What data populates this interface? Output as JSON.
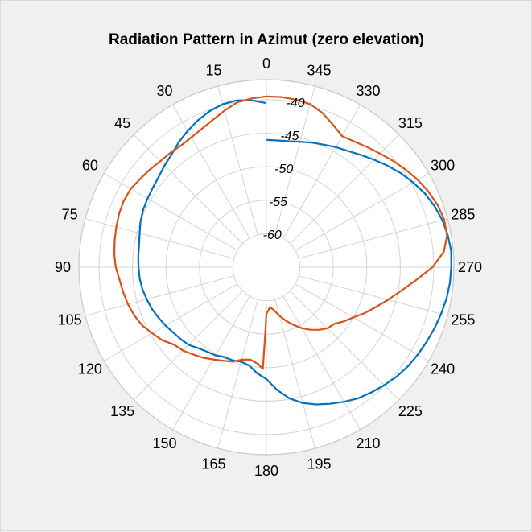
{
  "chart_data": {
    "type": "polar-line",
    "title": "Radiation Pattern in Azimut (zero elevation)",
    "theta_zero_location": "top",
    "theta_direction": "counterclockwise",
    "theta_tick_labels": [
      "0",
      "15",
      "30",
      "45",
      "60",
      "75",
      "90",
      "105",
      "120",
      "135",
      "150",
      "165",
      "180",
      "195",
      "210",
      "225",
      "240",
      "255",
      "270",
      "285",
      "300",
      "315",
      "330",
      "345"
    ],
    "theta_ticks": [
      0,
      15,
      30,
      45,
      60,
      75,
      90,
      105,
      120,
      135,
      150,
      165,
      180,
      195,
      210,
      225,
      240,
      255,
      270,
      285,
      300,
      315,
      330,
      345
    ],
    "r_ticks": [
      -60,
      -55,
      -50,
      -45,
      -40
    ],
    "r_tick_labels": [
      "-60",
      "-55",
      "-50",
      "-45",
      "-40"
    ],
    "rlim": [
      -65,
      -37
    ],
    "r_label_angle": 350,
    "grid": true,
    "series": [
      {
        "color": "#0072bd",
        "theta": [
          0,
          5,
          10,
          15,
          20,
          25,
          30,
          35,
          40,
          45,
          50,
          55,
          60,
          65,
          70,
          75,
          80,
          85,
          90,
          95,
          100,
          105,
          110,
          115,
          120,
          125,
          130,
          135,
          140,
          145,
          150,
          155,
          160,
          165,
          170,
          175,
          180,
          185,
          190,
          195,
          200,
          205,
          210,
          215,
          220,
          225,
          230,
          235,
          240,
          245,
          250,
          255,
          260,
          265,
          270,
          275,
          280,
          285,
          290,
          295,
          300,
          305,
          310,
          315,
          320,
          325,
          330,
          335,
          340,
          345,
          350,
          355,
          359.9
        ],
        "r": [
          -40.5,
          -40.0,
          -39.7,
          -39.8,
          -40.2,
          -40.8,
          -41.5,
          -42.2,
          -43.0,
          -43.5,
          -44.0,
          -44.3,
          -44.5,
          -44.7,
          -45.0,
          -45.4,
          -45.7,
          -45.8,
          -45.9,
          -46.0,
          -46.2,
          -46.5,
          -46.8,
          -47.2,
          -47.6,
          -48.0,
          -48.3,
          -48.6,
          -49.2,
          -49.6,
          -49.8,
          -50.2,
          -50.2,
          -50.4,
          -50.1,
          -49.1,
          -48.3,
          -46.6,
          -45.1,
          -44.0,
          -43.2,
          -42.5,
          -41.8,
          -41.1,
          -40.6,
          -40.1,
          -39.6,
          -39.2,
          -38.9,
          -38.6,
          -38.3,
          -38.0,
          -37.7,
          -37.5,
          -37.4,
          -37.3,
          -37.5,
          -37.8,
          -38.3,
          -38.9,
          -39.7,
          -40.5,
          -41.4,
          -42.3,
          -43.1,
          -43.8,
          -44.3,
          -44.8,
          -45.2,
          -45.6,
          -45.9,
          -46.0,
          -46.0
        ]
      },
      {
        "color": "#d95319",
        "theta": [
          0,
          5,
          10,
          15,
          20,
          25,
          30,
          35,
          40,
          45,
          50,
          55,
          60,
          65,
          70,
          75,
          80,
          85,
          90,
          95,
          100,
          105,
          110,
          115,
          120,
          125,
          130,
          135,
          140,
          145,
          150,
          155,
          160,
          165,
          170,
          175,
          178,
          179,
          180,
          185,
          190,
          195,
          200,
          205,
          210,
          215,
          220,
          225,
          230,
          235,
          240,
          245,
          250,
          255,
          260,
          265,
          270,
          275,
          280,
          285,
          290,
          295,
          300,
          305,
          310,
          315,
          320,
          325,
          330,
          335,
          340,
          345,
          350,
          355,
          360
        ],
        "r": [
          -39.5,
          -39.7,
          -40.0,
          -40.8,
          -41.6,
          -42.2,
          -42.6,
          -42.8,
          -42.7,
          -42.6,
          -42.3,
          -42.0,
          -41.6,
          -41.5,
          -41.6,
          -41.8,
          -42.0,
          -42.2,
          -42.5,
          -43.0,
          -43.3,
          -43.6,
          -44.0,
          -44.5,
          -45.3,
          -46.0,
          -47.0,
          -47.4,
          -48.0,
          -48.5,
          -49.1,
          -49.6,
          -50.0,
          -50.7,
          -51.0,
          -50.5,
          -49.8,
          -55.0,
          -58.0,
          -59.0,
          -58.5,
          -57.5,
          -56.5,
          -55.5,
          -54.5,
          -53.6,
          -52.8,
          -52.1,
          -51.8,
          -50.9,
          -50.0,
          -48.8,
          -47.6,
          -46.2,
          -44.6,
          -42.6,
          -40.2,
          -38.4,
          -37.6,
          -37.5,
          -37.8,
          -38.3,
          -38.9,
          -39.6,
          -40.3,
          -41.0,
          -41.6,
          -42.1,
          -42.4,
          -41.5,
          -40.5,
          -39.8,
          -39.6,
          -39.5,
          -39.5
        ]
      }
    ]
  }
}
